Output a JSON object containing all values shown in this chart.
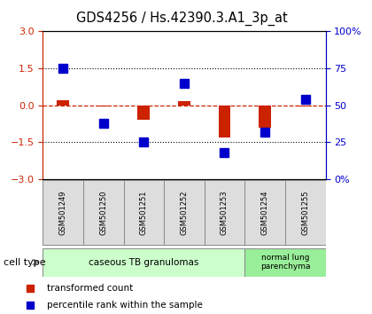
{
  "title": "GDS4256 / Hs.42390.3.A1_3p_at",
  "samples": [
    "GSM501249",
    "GSM501250",
    "GSM501251",
    "GSM501252",
    "GSM501253",
    "GSM501254",
    "GSM501255"
  ],
  "red_values": [
    0.2,
    -0.05,
    -0.6,
    0.15,
    -1.3,
    -0.9,
    -0.05
  ],
  "blue_values_pct": [
    75,
    38,
    25,
    65,
    18,
    32,
    54
  ],
  "ylim_left": [
    -3,
    3
  ],
  "ylim_right": [
    0,
    100
  ],
  "yticks_left": [
    -3,
    -1.5,
    0,
    1.5,
    3
  ],
  "yticks_right": [
    0,
    25,
    50,
    75,
    100
  ],
  "ytick_labels_right": [
    "0%",
    "25",
    "50",
    "75",
    "100%"
  ],
  "hline_dotted": [
    1.5,
    -1.5
  ],
  "hline_dashed": 0,
  "cell_type_groups": [
    {
      "label": "caseous TB granulomas",
      "samples_idx": [
        0,
        4
      ],
      "color": "#ccffcc"
    },
    {
      "label": "normal lung\nparenchyma",
      "samples_idx": [
        5,
        6
      ],
      "color": "#99ee99"
    }
  ],
  "legend_items": [
    {
      "color": "#cc2200",
      "label": "transformed count"
    },
    {
      "color": "#0000cc",
      "label": "percentile rank within the sample"
    }
  ],
  "bar_width": 0.3,
  "marker_size": 7,
  "title_fontsize": 10.5,
  "tick_fontsize": 8,
  "label_fontsize": 8,
  "bg_color": "#ffffff",
  "plot_bg": "#ffffff",
  "red_color": "#cc2200",
  "blue_color": "#0000cc",
  "left_tick_color": "#cc2200",
  "right_tick_color": "#0000cc"
}
